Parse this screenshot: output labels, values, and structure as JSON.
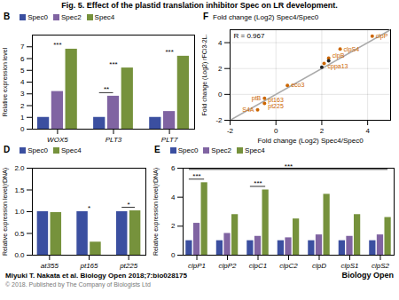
{
  "title": "Fig. 5. Effect of the plastid translation inhibitor Spec on LR development.",
  "annotations": [
    "Miyuki T. Nakata et al. Biology Open 2018;7:bio028175",
    "© 2018. Published by The Company of Biologists Ltd",
    "Biology Open"
  ],
  "chart_data": [
    {
      "type": "bar",
      "title": "B",
      "categories": [
        "WOX5",
        "PLT3",
        "PLT7"
      ],
      "series": [
        {
          "name": "Spec0",
          "color": "#3b4fa0",
          "values": [
            1.0,
            1.0,
            1.0
          ]
        },
        {
          "name": "Spec2",
          "color": "#8064a2",
          "values": [
            3.2,
            2.8,
            1.5
          ]
        },
        {
          "name": "Spec4",
          "color": "#76923c",
          "values": [
            6.8,
            5.2,
            6.2
          ]
        }
      ],
      "ylabel": "Relative expression level",
      "ylim": [
        0,
        8
      ],
      "yticks": [
        0,
        1,
        2,
        3,
        4,
        5,
        6,
        7
      ],
      "legend": "top left",
      "annotations": [
        {
          "text": "***",
          "category": "WOX5"
        },
        {
          "text": "***",
          "category": "PLT3"
        },
        {
          "text": "***",
          "category": "PLT7"
        },
        {
          "text": "**",
          "from": {
            "category": "PLT3",
            "series": "Spec0"
          },
          "to": {
            "category": "PLT3",
            "series": "Spec2"
          }
        }
      ]
    },
    {
      "type": "bar",
      "title": "D",
      "categories": [
        "at355",
        "pt165",
        "pt225"
      ],
      "series": [
        {
          "name": "Spec0",
          "color": "#3b4fa0",
          "values": [
            1.0,
            1.0,
            1.0
          ]
        },
        {
          "name": "Spec4",
          "color": "#76923c",
          "values": [
            0.98,
            0.3,
            1.02
          ]
        }
      ],
      "ylabel": "Relative expression level(rDNA)",
      "ylim": [
        0,
        2.0
      ],
      "yticks": [
        {
          "value": 0,
          "label": "0.0"
        },
        0.5,
        {
          "value": 1.0,
          "label": "1.0"
        },
        1.5,
        {
          "value": 2.0,
          "label": "2.0"
        }
      ],
      "legend": "top left",
      "annotations": [
        {
          "text": "*",
          "category": "pt165"
        },
        {
          "text": "*",
          "from": {
            "category": "pt225",
            "series": "Spec0"
          },
          "to": {
            "category": "pt225",
            "series": "Spec4"
          }
        }
      ]
    },
    {
      "type": "bar",
      "title": "E",
      "categories": [
        "clpP1",
        "clpP2",
        "clpC1",
        "clpC2",
        "clpD",
        "clpS1",
        "clpS2"
      ],
      "series": [
        {
          "name": "Spec0",
          "color": "#3b4fa0",
          "values": [
            1.0,
            1.0,
            1.0,
            1.0,
            1.0,
            1.0,
            1.0
          ]
        },
        {
          "name": "Spec2",
          "color": "#8064a2",
          "values": [
            2.2,
            1.5,
            1.3,
            1.2,
            1.4,
            1.3,
            1.4
          ]
        },
        {
          "name": "Spec4",
          "color": "#76923c",
          "values": [
            5.0,
            2.8,
            4.5,
            2.5,
            4.2,
            2.8,
            2.6
          ]
        }
      ],
      "ylabel": "Relative expression level(rDNA)",
      "ylim": [
        0,
        6
      ],
      "yticks": [
        0,
        2,
        4,
        6
      ],
      "legend": "top left",
      "annotations": [
        {
          "text": "***",
          "from": {
            "category": "clpP1",
            "series": "Spec0"
          },
          "to": {
            "category": "clpP1",
            "series": "Spec4"
          }
        },
        {
          "text": "***",
          "from": {
            "category": "clpC1",
            "series": "Spec0"
          },
          "to": {
            "category": "clpC1",
            "series": "Spec4"
          }
        },
        {
          "text": "***",
          "from": {
            "category": "clpP1",
            "series": "Spec0"
          },
          "to": {
            "category": "clpS2",
            "series": "Spec4"
          }
        }
      ]
    },
    {
      "type": "scatter",
      "title": "F",
      "subtitle": "Fold change (Log2) Spec4/Spec0",
      "x": [
        4.2,
        2.8,
        2.3,
        2.1,
        0.5,
        -0.5,
        -0.5,
        -0.8,
        2.3,
        2.0
      ],
      "values": [
        4.5,
        3.5,
        2.8,
        2.4,
        0.7,
        -0.3,
        -0.7,
        -1.2,
        2.6,
        2.1
      ],
      "colors": [
        "#cc6600",
        "#cc6600",
        "#cc6600",
        "#cc6600",
        "#cc6600",
        "#cc6600",
        "#cc6600",
        "#cc6600",
        "#222222",
        "#222222"
      ],
      "xlabel": "Fold change (Log2) Spec4/Spec0",
      "ylabel": "Fold change (Log2) rFCi3-2L.",
      "xlim": [
        -2,
        5
      ],
      "ylim": [
        -2,
        5
      ],
      "xticks": [
        -2,
        0,
        2,
        4
      ],
      "yticks": [
        -2,
        0,
        2,
        4
      ],
      "grid": true,
      "annotations": [
        {
          "text": "R = 0.967"
        },
        {
          "text": "clpP",
          "x": 4.2,
          "y": 4.5
        },
        {
          "text": "clpS4",
          "x": 2.8,
          "y": 3.5
        },
        {
          "text": "clpB",
          "x": 2.3,
          "y": 2.8
        },
        {
          "text": "cppa13",
          "x": 2.1,
          "y": 2.4
        },
        {
          "text": "eco3",
          "x": 0.5,
          "y": 0.7
        },
        {
          "text": "ptB",
          "x": -0.5,
          "y": -0.3
        },
        {
          "text": "pt163\npt225",
          "x": -0.5,
          "y": -0.7
        },
        {
          "text": "S4A",
          "x": -0.8,
          "y": -1.2
        }
      ]
    }
  ]
}
